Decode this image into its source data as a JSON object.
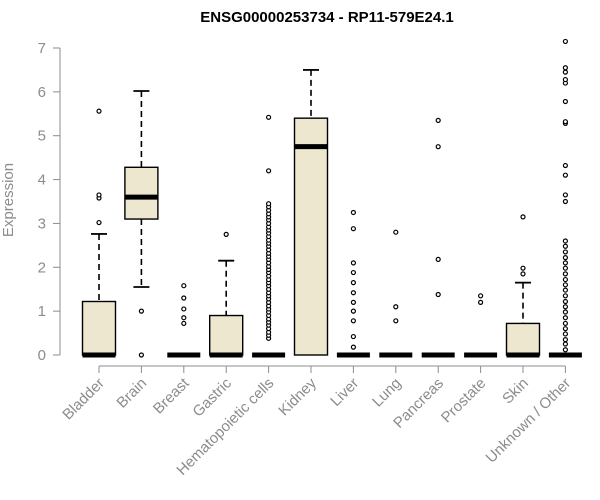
{
  "chart_data": {
    "type": "boxplot",
    "title": "ENSG00000253734 - RP11-579E24.1",
    "xlabel": "",
    "ylabel": "Expression",
    "ylim": [
      0,
      7.2
    ],
    "yticks": [
      0,
      1,
      2,
      3,
      4,
      5,
      6,
      7
    ],
    "grid": false,
    "legend": "none",
    "colors": {
      "box_fill": "#ede7cf",
      "box_stroke": "#000000",
      "axis": "#8c8c8c"
    },
    "categories": [
      "Bladder",
      "Brain",
      "Breast",
      "Gastric",
      "Hematopoietic cells",
      "Kidney",
      "Liver",
      "Lung",
      "Pancreas",
      "Prostate",
      "Skin",
      "Unknown / Other"
    ],
    "boxes": [
      {
        "category": "Bladder",
        "low": 0,
        "q1": 0,
        "median": 0,
        "q3": 1.22,
        "high": 2.76,
        "outliers": [
          3.02,
          3.58,
          3.65,
          5.56
        ]
      },
      {
        "category": "Brain",
        "low": 1.55,
        "q1": 3.1,
        "median": 3.6,
        "q3": 4.28,
        "high": 6.02,
        "outliers": [
          0,
          1.0
        ]
      },
      {
        "category": "Breast",
        "low": 0,
        "q1": 0,
        "median": 0,
        "q3": 0,
        "high": 0,
        "outliers": [
          0.72,
          0.85,
          1.05,
          1.3,
          1.58
        ]
      },
      {
        "category": "Gastric",
        "low": 0,
        "q1": 0,
        "median": 0,
        "q3": 0.9,
        "high": 2.15,
        "outliers": [
          2.75
        ]
      },
      {
        "category": "Hematopoietic cells",
        "low": 0,
        "q1": 0,
        "median": 0,
        "q3": 0,
        "high": 0,
        "outliers": [
          0.38,
          0.45,
          0.52,
          0.6,
          0.68,
          0.75,
          0.82,
          0.9,
          0.98,
          1.05,
          1.12,
          1.2,
          1.28,
          1.35,
          1.42,
          1.5,
          1.58,
          1.65,
          1.72,
          1.8,
          1.88,
          1.95,
          2.02,
          2.1,
          2.18,
          2.25,
          2.32,
          2.4,
          2.48,
          2.55,
          2.62,
          2.7,
          2.78,
          2.85,
          2.92,
          3.0,
          3.08,
          3.15,
          3.22,
          3.3,
          3.38,
          3.45,
          4.2,
          5.42
        ]
      },
      {
        "category": "Kidney",
        "low": 0,
        "q1": 0,
        "median": 4.75,
        "q3": 5.4,
        "high": 6.5,
        "outliers": []
      },
      {
        "category": "Liver",
        "low": 0,
        "q1": 0,
        "median": 0,
        "q3": 0,
        "high": 0,
        "outliers": [
          0.18,
          0.42,
          0.78,
          1.0,
          1.2,
          1.42,
          1.65,
          1.88,
          2.1,
          2.88,
          3.25
        ]
      },
      {
        "category": "Lung",
        "low": 0,
        "q1": 0,
        "median": 0,
        "q3": 0,
        "high": 0,
        "outliers": [
          0.78,
          1.1,
          2.8
        ]
      },
      {
        "category": "Pancreas",
        "low": 0,
        "q1": 0,
        "median": 0,
        "q3": 0,
        "high": 0,
        "outliers": [
          1.38,
          2.18,
          4.75,
          5.35
        ]
      },
      {
        "category": "Prostate",
        "low": 0,
        "q1": 0,
        "median": 0,
        "q3": 0,
        "high": 0,
        "outliers": [
          1.2,
          1.35
        ]
      },
      {
        "category": "Skin",
        "low": 0,
        "q1": 0,
        "median": 0,
        "q3": 0.72,
        "high": 1.65,
        "outliers": [
          1.85,
          1.98,
          3.15
        ]
      },
      {
        "category": "Unknown / Other",
        "low": 0,
        "q1": 0,
        "median": 0,
        "q3": 0,
        "high": 0,
        "outliers": [
          0.12,
          0.25,
          0.35,
          0.48,
          0.6,
          0.72,
          0.85,
          0.98,
          1.1,
          1.22,
          1.35,
          1.48,
          1.6,
          1.72,
          1.85,
          1.98,
          2.1,
          2.22,
          2.35,
          2.48,
          2.6,
          3.5,
          3.65,
          4.1,
          4.32,
          5.28,
          5.32,
          5.78,
          6.2,
          6.28,
          6.45,
          6.55,
          7.15
        ]
      }
    ]
  }
}
